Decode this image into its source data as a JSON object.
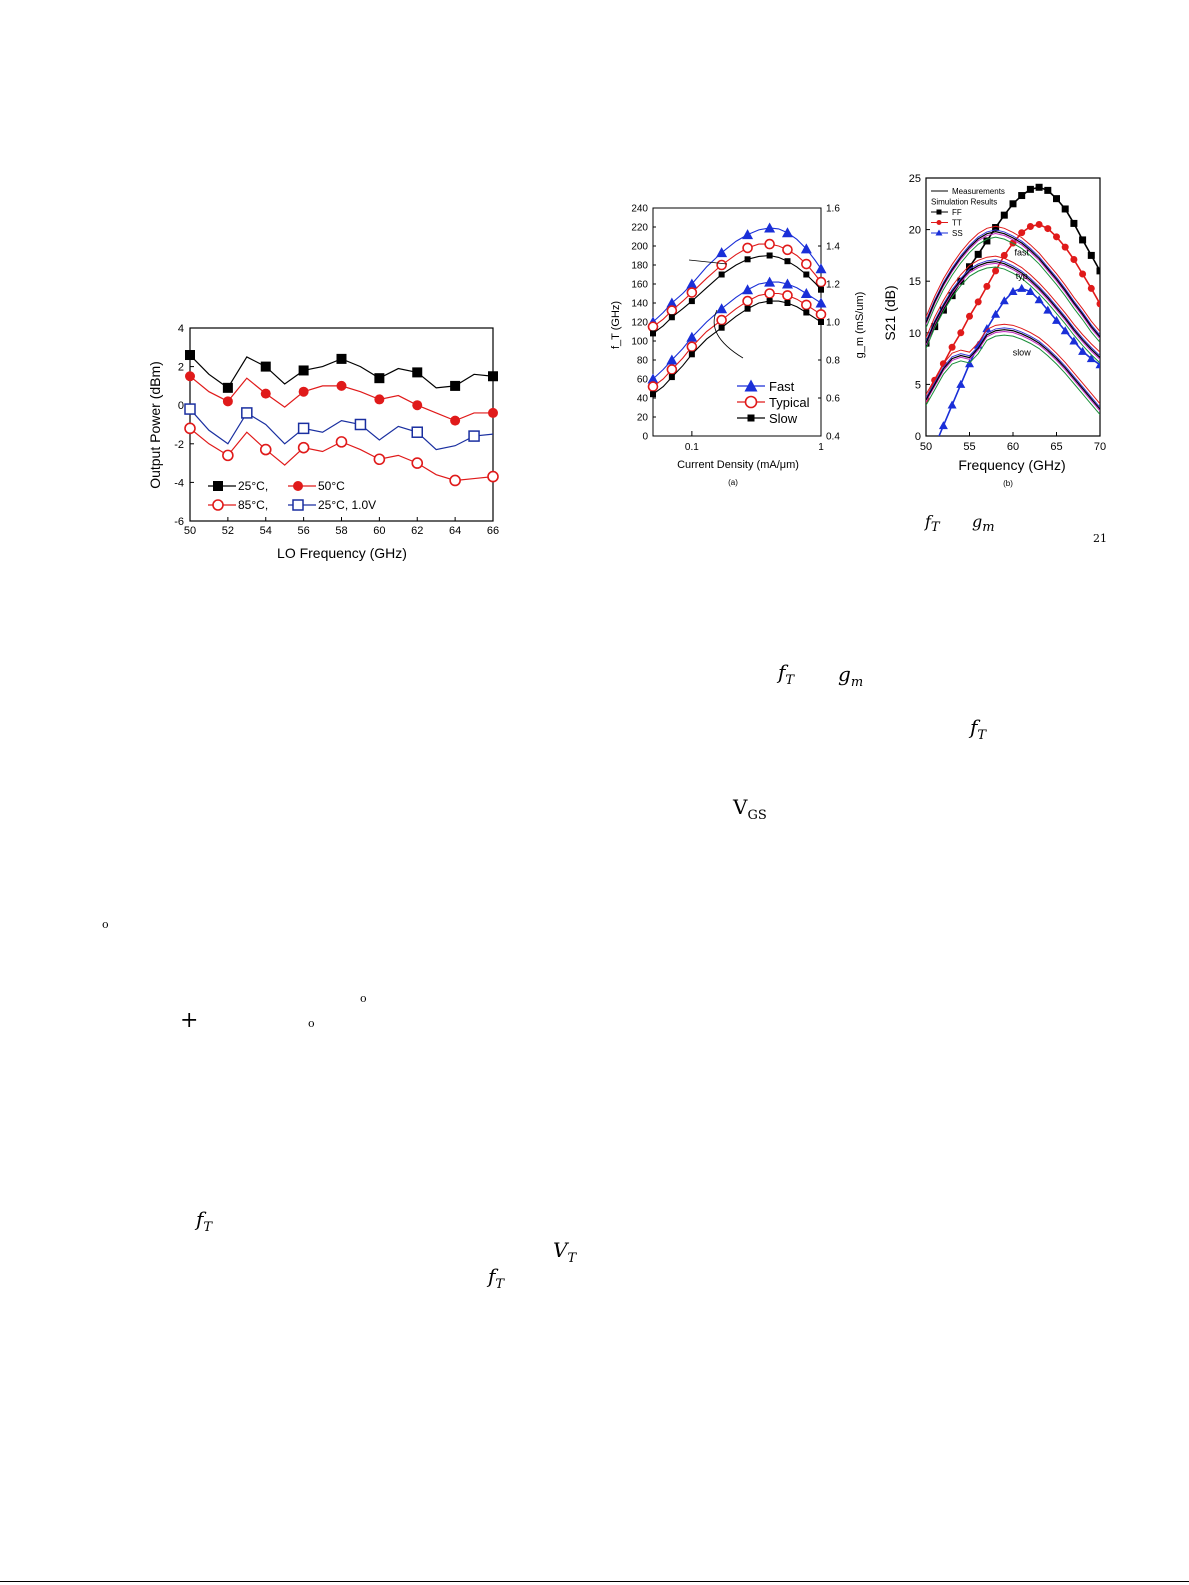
{
  "chart_data": [
    {
      "type": "line",
      "xlabel": "LO Frequency (GHz)",
      "ylabel": "Output Power (dBm)",
      "xlim": [
        50,
        66
      ],
      "ylim": [
        -6,
        4
      ],
      "xticks": [
        "50",
        "52",
        "54",
        "56",
        "58",
        "60",
        "62",
        "64",
        "66"
      ],
      "yticks": [
        "4",
        "2",
        "0",
        "-2",
        "-4",
        "-6"
      ],
      "x": [
        50,
        51,
        52,
        53,
        54,
        55,
        56,
        57,
        58,
        59,
        60,
        61,
        62,
        63,
        64,
        65,
        66
      ],
      "series": [
        {
          "name": "25°C,",
          "color": "#000000",
          "marker": "filled-square",
          "marker_x": [
            50,
            52,
            54,
            56,
            58,
            60,
            62,
            64,
            66
          ],
          "values": [
            2.6,
            1.6,
            0.9,
            2.5,
            2.0,
            1.1,
            1.8,
            2.0,
            2.4,
            2.0,
            1.4,
            1.9,
            1.7,
            0.9,
            1.0,
            1.6,
            1.5
          ]
        },
        {
          "name": "50°C",
          "color": "#e01a1a",
          "marker": "filled-circle",
          "marker_x": [
            50,
            52,
            54,
            56,
            58,
            60,
            62,
            64,
            66
          ],
          "values": [
            1.5,
            0.7,
            0.2,
            1.4,
            0.6,
            -0.1,
            0.7,
            1.0,
            1.0,
            0.7,
            0.3,
            0.5,
            0.0,
            -0.4,
            -0.8,
            -0.4,
            -0.4
          ]
        },
        {
          "name": "85°C,",
          "color": "#e01a1a",
          "marker": "open-circle",
          "marker_x": [
            50,
            52,
            54,
            56,
            58,
            60,
            62,
            64,
            66
          ],
          "values": [
            -1.2,
            -2.0,
            -2.6,
            -1.4,
            -2.3,
            -3.1,
            -2.2,
            -2.4,
            -1.9,
            -2.3,
            -2.8,
            -2.6,
            -3.0,
            -3.6,
            -3.9,
            -3.8,
            -3.7
          ]
        },
        {
          "name": "25°C, 1.0V",
          "color": "#1a2fa0",
          "marker": "open-square",
          "marker_x": [
            50,
            53,
            56,
            59,
            62,
            65
          ],
          "values": [
            -0.2,
            -1.3,
            -2.0,
            -0.4,
            -1.0,
            -2.0,
            -1.2,
            -1.4,
            -0.8,
            -1.0,
            -1.8,
            -1.1,
            -1.4,
            -2.3,
            -2.1,
            -1.6,
            -1.5
          ]
        }
      ]
    },
    {
      "type": "line",
      "caption": "(a)",
      "xlabel": "Current Density (mA/μm)",
      "ylabel": "f_T (GHz)",
      "y2label": "g_m (mS/um)",
      "xscale": "log",
      "xlim": [
        0.05,
        1
      ],
      "ylim": [
        0,
        240
      ],
      "y2lim": [
        0.4,
        1.6
      ],
      "xticks": [
        "0.1",
        "1"
      ],
      "yticks": [
        "0",
        "20",
        "40",
        "60",
        "80",
        "100",
        "120",
        "140",
        "160",
        "180",
        "200",
        "220",
        "240"
      ],
      "y2ticks": [
        "0.4",
        "0.6",
        "0.8",
        "1.0",
        "1.2",
        "1.4",
        "1.6"
      ],
      "x": [
        0.05,
        0.06,
        0.07,
        0.085,
        0.1,
        0.13,
        0.17,
        0.22,
        0.27,
        0.33,
        0.4,
        0.47,
        0.55,
        0.65,
        0.77,
        0.9,
        1.0
      ],
      "series": [
        {
          "name": "Fast",
          "axis": "fT",
          "color": "#1a2fd8",
          "marker": "filled-triangle",
          "values": [
            120,
            130,
            140,
            150,
            160,
            178,
            193,
            205,
            212,
            217,
            219,
            218,
            214,
            207,
            197,
            185,
            176
          ]
        },
        {
          "name": "Typical",
          "axis": "fT",
          "color": "#e01a1a",
          "marker": "open-circle",
          "values": [
            115,
            123,
            132,
            142,
            151,
            166,
            180,
            191,
            198,
            202,
            202,
            200,
            196,
            190,
            181,
            170,
            162
          ]
        },
        {
          "name": "Slow",
          "axis": "fT",
          "color": "#000000",
          "marker": "filled-square",
          "values": [
            108,
            116,
            125,
            134,
            142,
            156,
            170,
            180,
            186,
            189,
            190,
            188,
            184,
            178,
            170,
            161,
            154
          ]
        },
        {
          "name": "",
          "axis": "gm",
          "color": "#1a2fd8",
          "marker": "filled-triangle",
          "values": [
            0.7,
            0.75,
            0.8,
            0.86,
            0.92,
            1.0,
            1.07,
            1.13,
            1.17,
            1.2,
            1.21,
            1.21,
            1.2,
            1.18,
            1.15,
            1.12,
            1.1
          ]
        },
        {
          "name": "",
          "axis": "gm",
          "color": "#e01a1a",
          "marker": "open-circle",
          "values": [
            0.66,
            0.7,
            0.75,
            0.81,
            0.87,
            0.95,
            1.01,
            1.07,
            1.11,
            1.14,
            1.15,
            1.15,
            1.14,
            1.12,
            1.09,
            1.06,
            1.04
          ]
        },
        {
          "name": "",
          "axis": "gm",
          "color": "#000000",
          "marker": "filled-square",
          "values": [
            0.62,
            0.66,
            0.71,
            0.77,
            0.83,
            0.91,
            0.97,
            1.03,
            1.07,
            1.1,
            1.11,
            1.11,
            1.1,
            1.08,
            1.05,
            1.02,
            1.0
          ]
        }
      ]
    },
    {
      "type": "line",
      "caption": "(b)",
      "xlabel": "Frequency (GHz)",
      "ylabel": "S21 (dB)",
      "xlim": [
        50,
        70
      ],
      "ylim": [
        0,
        25
      ],
      "xticks": [
        "50",
        "55",
        "60",
        "65",
        "70"
      ],
      "yticks": [
        "0",
        "5",
        "10",
        "15",
        "20",
        "25"
      ],
      "legend": [
        "Measurements",
        "Simulation Results",
        "FF",
        "TT",
        "SS"
      ],
      "annotations": [
        "fast",
        "typ",
        "slow"
      ],
      "x": [
        50,
        51,
        52,
        53,
        54,
        55,
        56,
        57,
        58,
        59,
        60,
        61,
        62,
        63,
        64,
        65,
        66,
        67,
        68,
        69,
        70
      ],
      "series": [
        {
          "name": "FF",
          "color": "#000000",
          "marker": "filled-square",
          "values": [
            9.0,
            10.6,
            12.2,
            13.6,
            15.0,
            16.4,
            17.6,
            18.9,
            20.2,
            21.4,
            22.5,
            23.3,
            23.9,
            24.1,
            23.8,
            23.0,
            22.0,
            20.6,
            19.0,
            17.5,
            16.0
          ]
        },
        {
          "name": "TT",
          "color": "#e01a1a",
          "marker": "filled-circle",
          "values": [
            3.6,
            5.4,
            7.0,
            8.6,
            10.0,
            11.6,
            13.0,
            14.5,
            16.0,
            17.5,
            18.7,
            19.7,
            20.3,
            20.5,
            20.1,
            19.3,
            18.3,
            17.1,
            15.7,
            14.3,
            12.8
          ]
        },
        {
          "name": "SS",
          "color": "#1a2fd8",
          "marker": "filled-triangle",
          "values": [
            -3.0,
            -1.0,
            1.0,
            3.0,
            5.0,
            7.0,
            8.8,
            10.4,
            11.8,
            13.1,
            14.0,
            14.3,
            14.0,
            13.2,
            12.2,
            11.2,
            10.2,
            9.2,
            8.2,
            7.5,
            6.9
          ]
        },
        {
          "name": "Measurements",
          "color": "#000000",
          "marker": "none",
          "values": [
            11.0,
            13.0,
            14.7,
            16.1,
            17.3,
            18.3,
            19.1,
            19.6,
            19.8,
            19.6,
            19.2,
            18.7,
            18.0,
            17.2,
            16.2,
            15.2,
            14.1,
            12.9,
            11.8,
            10.6,
            9.6
          ]
        },
        {
          "name": "",
          "color": "#000000",
          "marker": "none",
          "values": [
            9.0,
            11.0,
            12.6,
            14.0,
            15.1,
            16.0,
            16.5,
            16.8,
            16.9,
            16.7,
            16.3,
            15.8,
            15.1,
            14.3,
            13.4,
            12.4,
            11.4,
            10.3,
            9.3,
            8.4,
            7.6
          ]
        },
        {
          "name": "",
          "color": "#000000",
          "marker": "none",
          "values": [
            3.5,
            5.0,
            6.5,
            7.5,
            7.8,
            7.6,
            8.5,
            9.8,
            10.2,
            10.3,
            10.2,
            9.9,
            9.5,
            9.0,
            8.3,
            7.5,
            6.6,
            5.6,
            4.6,
            3.6,
            2.6
          ]
        }
      ]
    }
  ],
  "math": {
    "fT_fig_caption": "f",
    "fT_sub": "T",
    "gm_fig_caption": "g",
    "gm_sub": "m",
    "tag_21": "21",
    "fT_1": "f",
    "fT_1_sub": "T",
    "gm_1": "g",
    "gm_1_sub": "m",
    "fT_2": "f",
    "fT_2_sub": "T",
    "vgs": "V",
    "vgs_sub": "GS",
    "fT_3": "f",
    "fT_3_sub": "T",
    "vt": "V",
    "vt_sub": "T",
    "fT_4": "f",
    "fT_4_sub": "T",
    "plus": "+",
    "degree": "o"
  }
}
